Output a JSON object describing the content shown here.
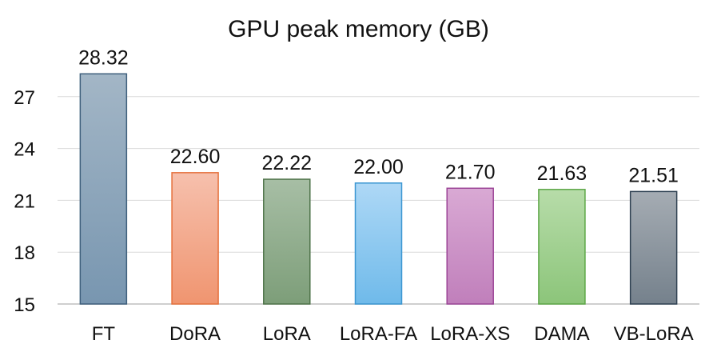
{
  "chart_data": {
    "type": "bar",
    "title": "GPU peak memory (GB)",
    "xlabel": "",
    "ylabel": "",
    "categories": [
      "FT",
      "DoRA",
      "LoRA",
      "LoRA-FA",
      "LoRA-XS",
      "DAMA",
      "VB-LoRA"
    ],
    "values": [
      28.32,
      22.6,
      22.22,
      22.0,
      21.7,
      21.63,
      21.51
    ],
    "data_labels": [
      "28.32",
      "22.60",
      "22.22",
      "22.00",
      "21.70",
      "21.63",
      "21.51"
    ],
    "ylim": [
      15,
      27.5
    ],
    "yticks": [
      15,
      18,
      21,
      24,
      27
    ],
    "grid": true,
    "legend": "none",
    "bar_colors": [
      {
        "fill_top": "#a3b6c6",
        "fill_bottom": "#7896b0",
        "stroke": "#3e5f7c"
      },
      {
        "fill_top": "#f6c0ad",
        "fill_bottom": "#f09570",
        "stroke": "#e5703c"
      },
      {
        "fill_top": "#a7bea5",
        "fill_bottom": "#7d9e79",
        "stroke": "#4e7349"
      },
      {
        "fill_top": "#aed8f6",
        "fill_bottom": "#6fbaea",
        "stroke": "#3b96d1"
      },
      {
        "fill_top": "#d9a9d4",
        "fill_bottom": "#c07fbb",
        "stroke": "#9c4597"
      },
      {
        "fill_top": "#b7dca9",
        "fill_bottom": "#8cc57a",
        "stroke": "#5da747"
      },
      {
        "fill_top": "#a5acb3",
        "fill_bottom": "#75818c",
        "stroke": "#2f4152"
      }
    ],
    "grid_color": "#d9d9d9",
    "axis_color": "#bfbfbf"
  }
}
